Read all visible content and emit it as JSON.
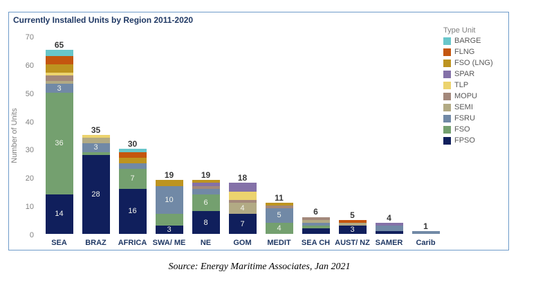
{
  "source_note": "Source: Energy Maritime Associates, Jan 2021",
  "chart_data": {
    "type": "bar",
    "stacked": true,
    "title": "Currently Installed Units by Region 2011-2020",
    "xlabel": "",
    "ylabel": "Number of Units",
    "ylim": [
      0,
      70
    ],
    "yticks": [
      0,
      10,
      20,
      30,
      40,
      50,
      60,
      70
    ],
    "grid": false,
    "legend_title": "Type Unit",
    "legend_position": "right",
    "legend_order_top_to_bottom": [
      "BARGE",
      "FLNG",
      "FSO (LNG)",
      "SPAR",
      "TLP",
      "MOPU",
      "SEMI",
      "FSRU",
      "FSO",
      "FPSO"
    ],
    "categories": [
      "SEA",
      "BRAZ",
      "AFRICA",
      "SWA/ ME",
      "NE",
      "GOM",
      "MEDIT",
      "SEA CH",
      "AUST/ NZ",
      "SAMER",
      "Carib"
    ],
    "totals": [
      65,
      35,
      30,
      19,
      19,
      18,
      11,
      6,
      5,
      4,
      1
    ],
    "series": [
      {
        "name": "FPSO",
        "color": "#101f5c",
        "values": [
          14,
          28,
          16,
          3,
          8,
          7,
          0,
          2,
          3,
          1,
          0
        ],
        "shown_labels": [
          "14",
          "28",
          "16",
          "3",
          "8",
          "7",
          null,
          null,
          "3",
          null,
          null
        ]
      },
      {
        "name": "FSO",
        "color": "#74a06f",
        "values": [
          36,
          1,
          7,
          4,
          6,
          0,
          4,
          1,
          0,
          0,
          0
        ],
        "shown_labels": [
          "36",
          null,
          "7",
          null,
          "6",
          null,
          "4",
          null,
          null,
          null,
          null
        ]
      },
      {
        "name": "FSRU",
        "color": "#7189a6",
        "values": [
          3,
          3,
          2,
          10,
          2,
          0,
          5,
          1,
          0,
          2,
          1
        ],
        "shown_labels": [
          "3",
          "3",
          null,
          "10",
          null,
          null,
          "5",
          null,
          null,
          null,
          null
        ]
      },
      {
        "name": "SEMI",
        "color": "#b2aa84",
        "values": [
          1,
          2,
          0,
          0,
          0,
          4,
          0,
          1,
          1,
          0,
          0
        ],
        "shown_labels": [
          null,
          null,
          null,
          null,
          null,
          "4",
          null,
          null,
          null,
          null,
          null
        ]
      },
      {
        "name": "MOPU",
        "color": "#a3887b",
        "values": [
          2,
          0,
          0,
          0,
          1,
          1,
          1,
          1,
          0,
          0,
          0
        ],
        "shown_labels": [
          null,
          null,
          null,
          null,
          null,
          null,
          null,
          null,
          null,
          null,
          null
        ]
      },
      {
        "name": "TLP",
        "color": "#ecd36e",
        "values": [
          1,
          1,
          0,
          0,
          0,
          3,
          0,
          0,
          0,
          0,
          0
        ],
        "shown_labels": [
          null,
          null,
          null,
          null,
          null,
          null,
          null,
          null,
          null,
          null,
          null
        ]
      },
      {
        "name": "SPAR",
        "color": "#8471a8",
        "values": [
          0,
          0,
          0,
          0,
          1,
          3,
          0,
          0,
          0,
          1,
          0
        ],
        "shown_labels": [
          null,
          null,
          null,
          null,
          null,
          null,
          null,
          null,
          null,
          null,
          null
        ]
      },
      {
        "name": "FSO (LNG)",
        "color": "#bd9420",
        "values": [
          3,
          0,
          2,
          2,
          1,
          0,
          1,
          0,
          0,
          0,
          0
        ],
        "shown_labels": [
          null,
          null,
          null,
          null,
          null,
          null,
          null,
          null,
          null,
          null,
          null
        ]
      },
      {
        "name": "FLNG",
        "color": "#c4560f",
        "values": [
          3,
          0,
          2,
          0,
          0,
          0,
          0,
          0,
          1,
          0,
          0
        ],
        "shown_labels": [
          null,
          null,
          null,
          null,
          null,
          null,
          null,
          null,
          null,
          null,
          null
        ]
      },
      {
        "name": "BARGE",
        "color": "#68c6ca",
        "values": [
          2,
          0,
          1,
          0,
          0,
          0,
          0,
          0,
          0,
          0,
          0
        ],
        "shown_labels": [
          null,
          null,
          null,
          null,
          null,
          null,
          null,
          null,
          null,
          null,
          null
        ]
      }
    ]
  }
}
